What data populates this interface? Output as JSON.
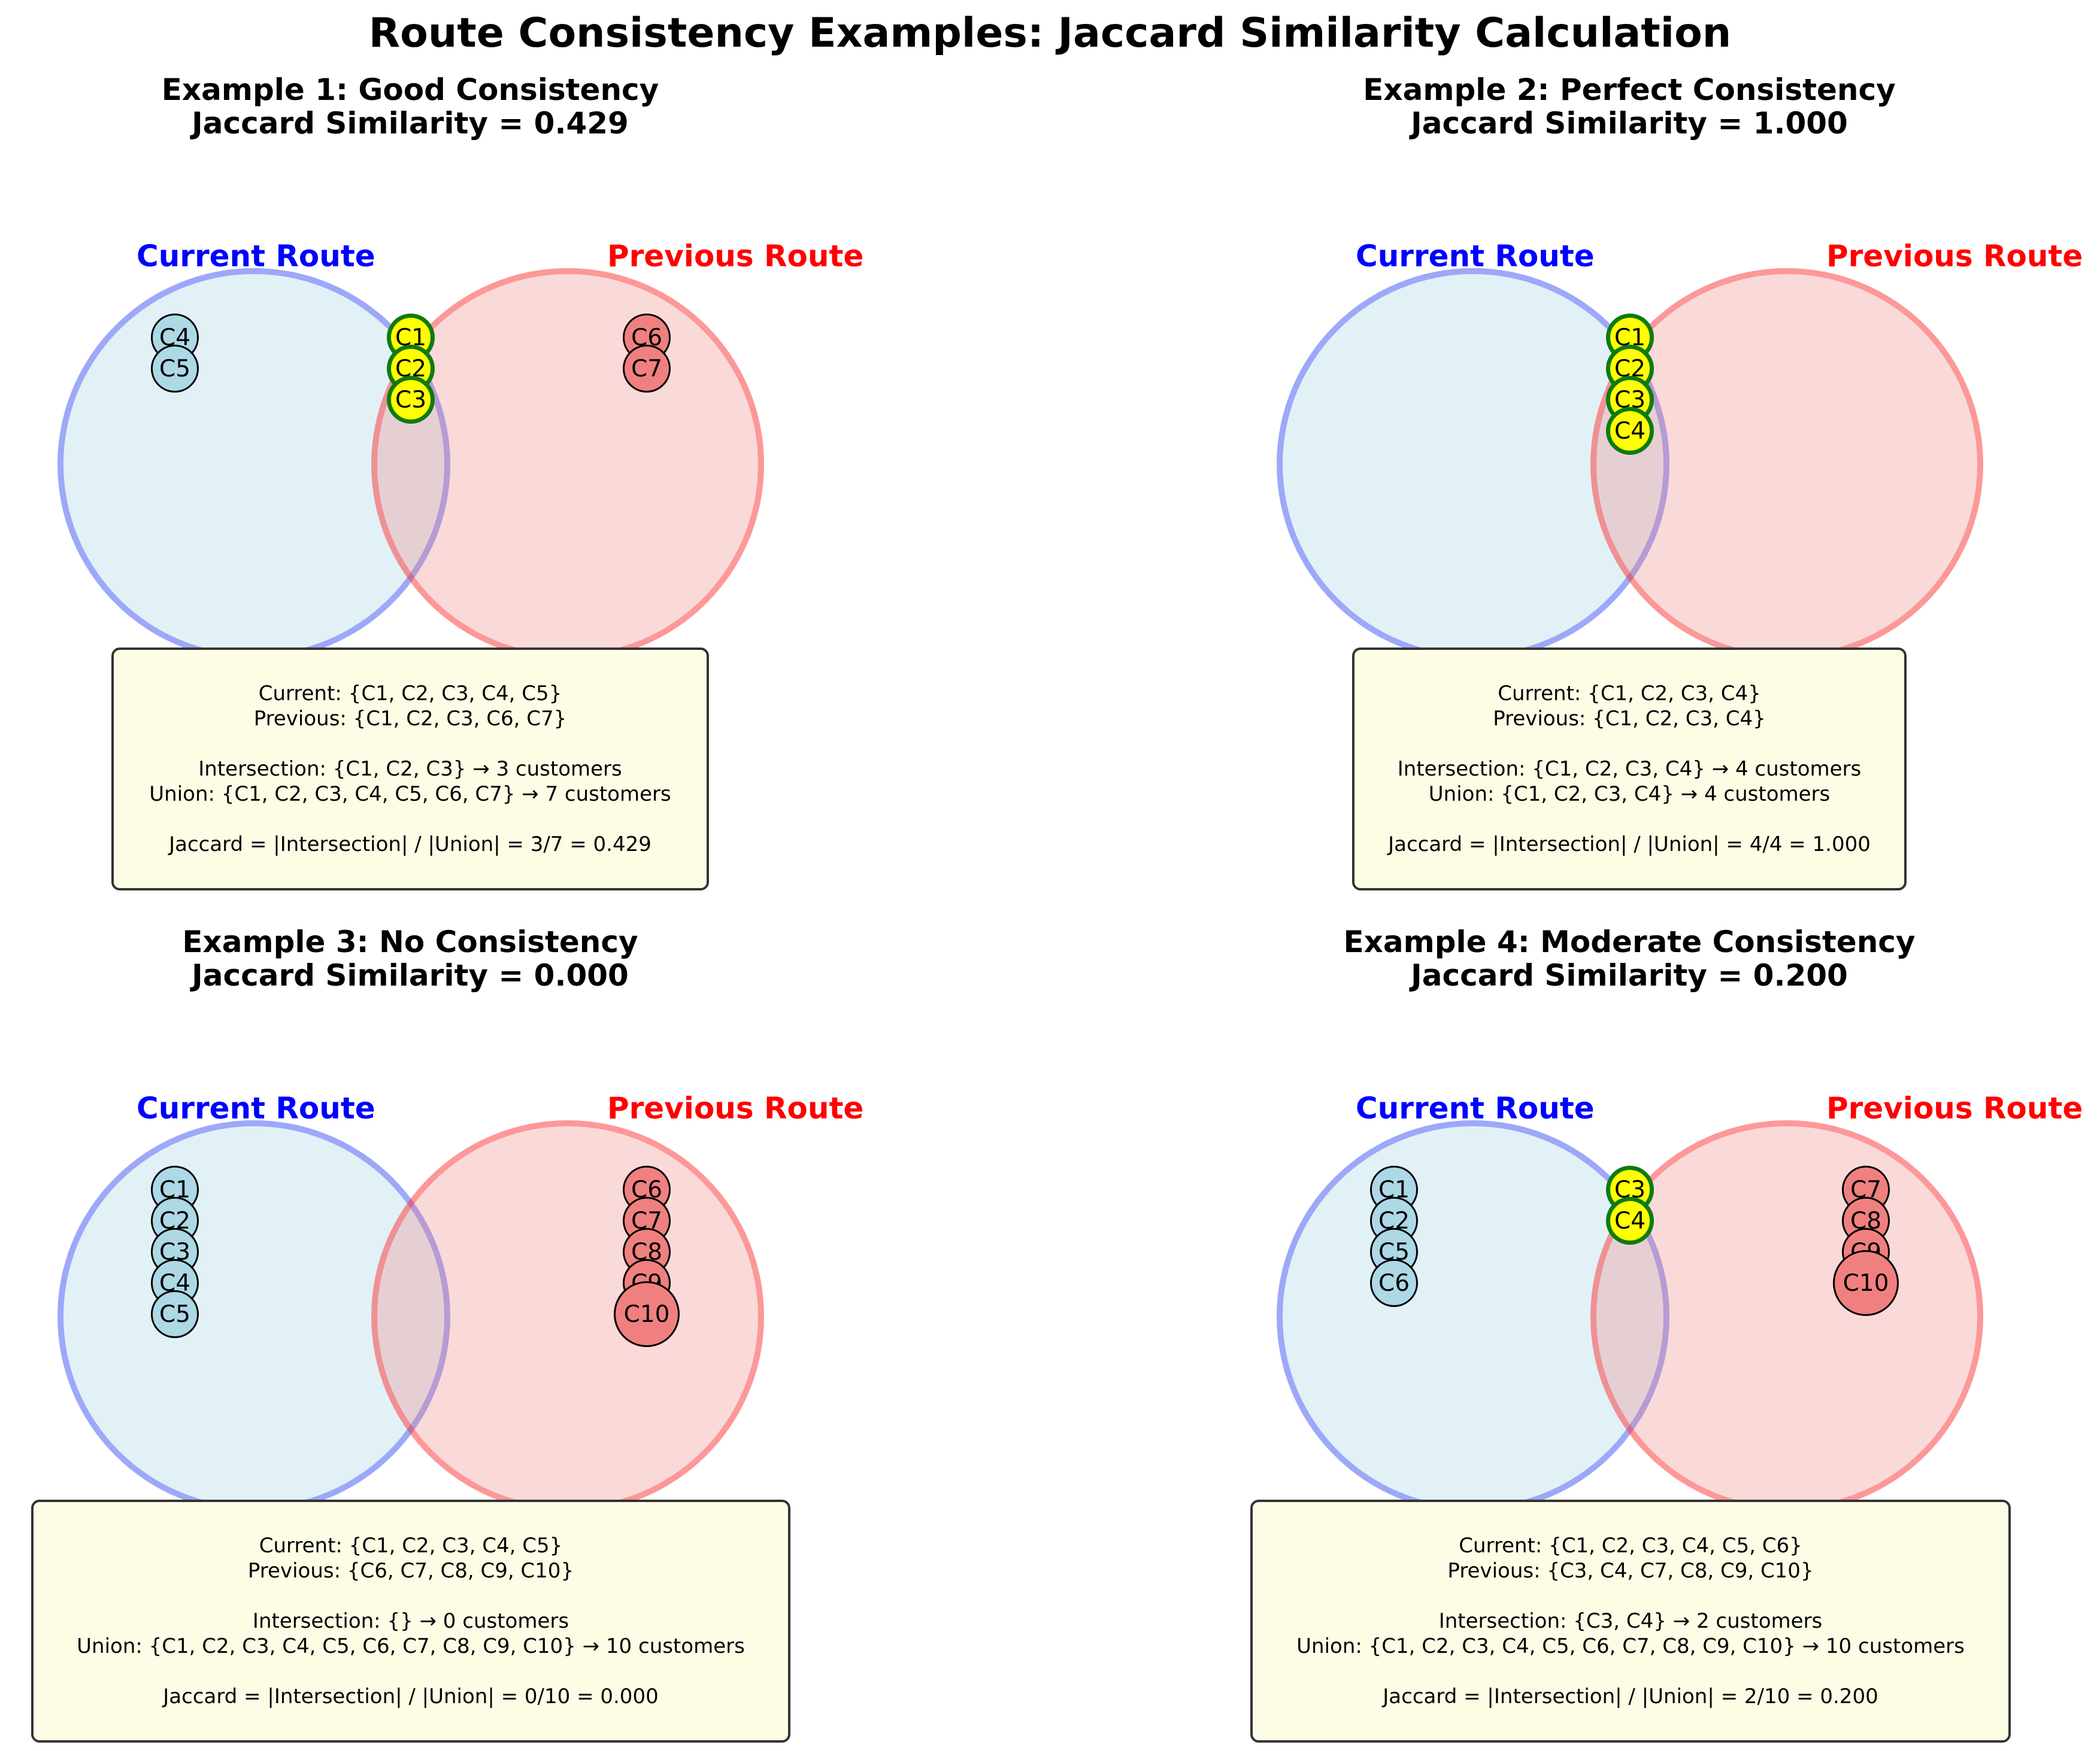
{
  "title": "Route Consistency Examples: Jaccard Similarity Calculation",
  "legend": {
    "current_label": "Current Route",
    "previous_label": "Previous Route"
  },
  "colors": {
    "current_stroke": "#0000ff",
    "current_fill": "#add8e6",
    "previous_stroke": "#ff0000",
    "previous_fill": "#f08080",
    "shared_fill": "#ffff00",
    "shared_stroke": "#008000",
    "info_box": "#fdfde6"
  },
  "examples": [
    {
      "title": "Example 1: Good Consistency",
      "subtitle": "Jaccard Similarity = 0.429",
      "current_only": [
        "C4",
        "C5"
      ],
      "shared": [
        "C1",
        "C2",
        "C3"
      ],
      "previous_only": [
        "C6",
        "C7"
      ],
      "info": {
        "current": "Current: {C1, C2, C3, C4, C5}",
        "previous": "Previous: {C1, C2, C3, C6, C7}",
        "intersection": "Intersection: {C1, C2, C3} → 3 customers",
        "union": "Union: {C1, C2, C3, C4, C5, C6, C7} → 7 customers",
        "jaccard": "Jaccard = |Intersection| / |Union| = 3/7 = 0.429"
      }
    },
    {
      "title": "Example 2: Perfect Consistency",
      "subtitle": "Jaccard Similarity = 1.000",
      "current_only": [],
      "shared": [
        "C1",
        "C2",
        "C3",
        "C4"
      ],
      "previous_only": [],
      "info": {
        "current": "Current: {C1, C2, C3, C4}",
        "previous": "Previous: {C1, C2, C3, C4}",
        "intersection": "Intersection: {C1, C2, C3, C4} → 4 customers",
        "union": "Union: {C1, C2, C3, C4} → 4 customers",
        "jaccard": "Jaccard = |Intersection| / |Union| = 4/4 = 1.000"
      }
    },
    {
      "title": "Example 3: No Consistency",
      "subtitle": "Jaccard Similarity = 0.000",
      "current_only": [
        "C1",
        "C2",
        "C3",
        "C4",
        "C5"
      ],
      "shared": [],
      "previous_only": [
        "C6",
        "C7",
        "C8",
        "C9",
        "C10"
      ],
      "info": {
        "current": "Current: {C1, C2, C3, C4, C5}",
        "previous": "Previous: {C6, C7, C8, C9, C10}",
        "intersection": "Intersection: {} → 0 customers",
        "union": "Union: {C1, C2, C3, C4, C5, C6, C7, C8, C9, C10} → 10 customers",
        "jaccard": "Jaccard = |Intersection| / |Union| = 0/10 = 0.000"
      }
    },
    {
      "title": "Example 4: Moderate Consistency",
      "subtitle": "Jaccard Similarity = 0.200",
      "current_only": [
        "C1",
        "C2",
        "C5",
        "C6"
      ],
      "shared": [
        "C3",
        "C4"
      ],
      "previous_only": [
        "C7",
        "C8",
        "C9",
        "C10"
      ],
      "info": {
        "current": "Current: {C1, C2, C3, C4, C5, C6}",
        "previous": "Previous: {C3, C4, C7, C8, C9, C10}",
        "intersection": "Intersection: {C3, C4} → 2 customers",
        "union": "Union: {C1, C2, C3, C4, C5, C6, C7, C8, C9, C10} → 10 customers",
        "jaccard": "Jaccard = |Intersection| / |Union| = 2/10 = 0.200"
      }
    }
  ]
}
